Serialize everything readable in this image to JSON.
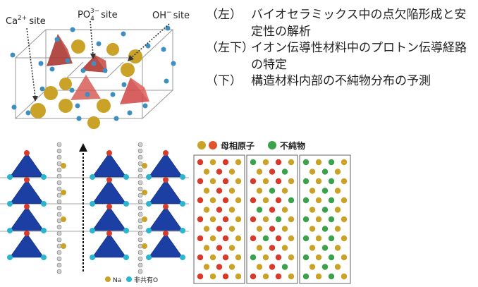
{
  "top_panel": {
    "labels": {
      "ca_site": "Ca",
      "ca_sup": "2+",
      "ca_suffix": "site",
      "po_site": "PO",
      "po_sub": "4",
      "po_sup": "3−",
      "po_suffix": "site",
      "oh_site": "OH",
      "oh_sup": "−",
      "oh_suffix": "site"
    }
  },
  "captions": [
    {
      "tag": "（左）",
      "text": "バイオセラミックス中の点欠陥形成と安定性の解析"
    },
    {
      "tag": "（左下）",
      "text": "イオン伝導性材料中のプロトン伝導経路の特定"
    },
    {
      "tag": "（下）",
      "text": "構造材料内部の不純物分布の予測"
    }
  ],
  "bottom_left": {
    "legend": {
      "na": "Na",
      "o": "非共有O"
    }
  },
  "bottom_right": {
    "legend": {
      "matrix": "母相原子",
      "impurity": "不純物"
    }
  },
  "colors": {
    "gold": "#c9a227",
    "red_oxygen": "#d73a2a",
    "green_impurity": "#3aa24a",
    "blue_tetra": "#1b3fa3",
    "cyan": "#29b6cf",
    "pink_tetra": "#d24a4a"
  }
}
